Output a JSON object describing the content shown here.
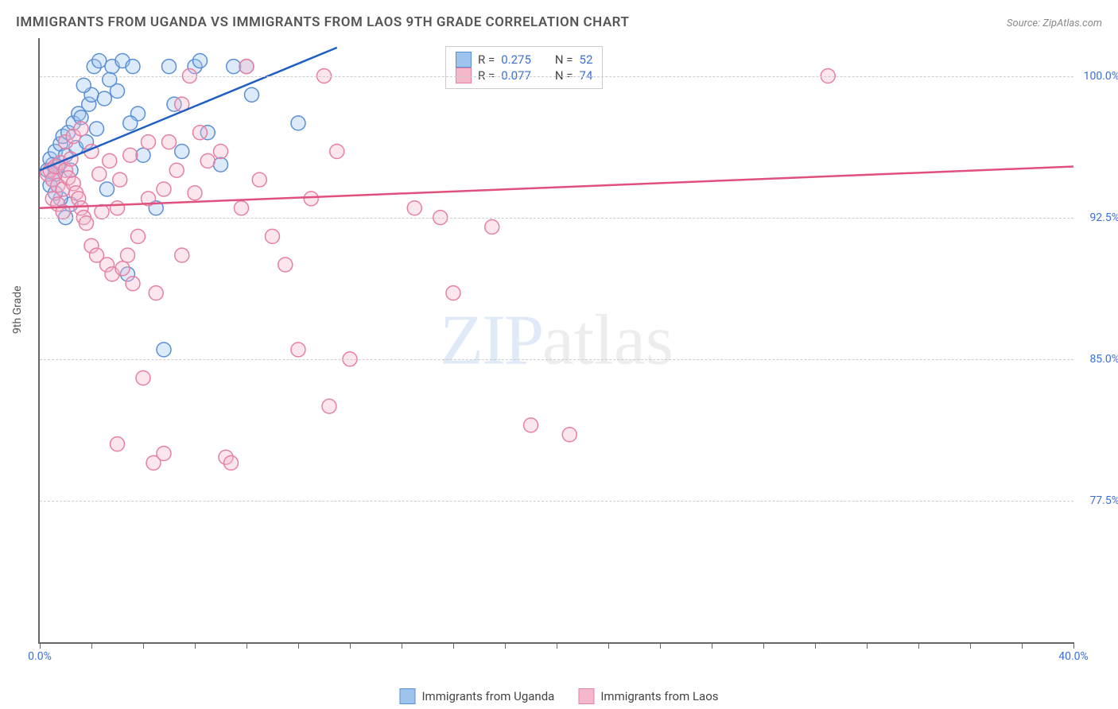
{
  "title": "IMMIGRANTS FROM UGANDA VS IMMIGRANTS FROM LAOS 9TH GRADE CORRELATION CHART",
  "source": "Source: ZipAtlas.com",
  "ylabel": "9th Grade",
  "watermark": {
    "part1": "ZIP",
    "part2": "atlas"
  },
  "chart": {
    "type": "scatter",
    "xlim": [
      0,
      40
    ],
    "ylim": [
      70,
      102
    ],
    "yticks": [
      {
        "v": 100.0,
        "label": "100.0%"
      },
      {
        "v": 92.5,
        "label": "92.5%"
      },
      {
        "v": 85.0,
        "label": "85.0%"
      },
      {
        "v": 77.5,
        "label": "77.5%"
      }
    ],
    "xticks_labeled": [
      {
        "v": 0,
        "label": "0.0%"
      },
      {
        "v": 40,
        "label": "40.0%"
      }
    ],
    "xticks_minor": [
      0,
      2,
      4,
      6,
      8,
      10,
      12,
      14,
      16,
      18,
      20,
      22,
      24,
      26,
      28,
      30,
      32,
      34,
      36,
      38,
      40
    ],
    "marker_radius": 9,
    "series": [
      {
        "name": "Immigrants from Uganda",
        "color_fill": "#9ec4ee",
        "color_stroke": "#5a8fd6",
        "R": "0.275",
        "N": "52",
        "trend": {
          "x1": 0,
          "y1": 95.0,
          "x2": 11.5,
          "y2": 101.5,
          "color": "#1f5fc4"
        },
        "points": [
          [
            0.3,
            95.0
          ],
          [
            0.5,
            95.3
          ],
          [
            0.4,
            95.6
          ],
          [
            0.6,
            96.0
          ],
          [
            0.7,
            95.2
          ],
          [
            0.8,
            96.4
          ],
          [
            0.5,
            94.5
          ],
          [
            0.6,
            94.8
          ],
          [
            0.9,
            96.8
          ],
          [
            1.0,
            95.8
          ],
          [
            1.1,
            97.0
          ],
          [
            1.2,
            95.0
          ],
          [
            1.3,
            97.5
          ],
          [
            1.4,
            96.2
          ],
          [
            1.5,
            98.0
          ],
          [
            1.6,
            97.8
          ],
          [
            1.8,
            96.5
          ],
          [
            1.9,
            98.5
          ],
          [
            2.0,
            99.0
          ],
          [
            2.1,
            100.5
          ],
          [
            2.3,
            100.8
          ],
          [
            2.5,
            98.8
          ],
          [
            2.6,
            94.0
          ],
          [
            2.8,
            100.5
          ],
          [
            3.0,
            99.2
          ],
          [
            3.2,
            100.8
          ],
          [
            3.4,
            89.5
          ],
          [
            3.6,
            100.5
          ],
          [
            3.8,
            98.0
          ],
          [
            4.0,
            95.8
          ],
          [
            4.5,
            93.0
          ],
          [
            4.8,
            85.5
          ],
          [
            5.0,
            100.5
          ],
          [
            5.2,
            98.5
          ],
          [
            5.5,
            96.0
          ],
          [
            6.0,
            100.5
          ],
          [
            6.2,
            100.8
          ],
          [
            6.5,
            97.0
          ],
          [
            7.0,
            95.3
          ],
          [
            7.5,
            100.5
          ],
          [
            8.0,
            100.5
          ],
          [
            8.2,
            99.0
          ],
          [
            10.0,
            97.5
          ],
          [
            1.0,
            92.5
          ],
          [
            1.2,
            93.2
          ],
          [
            0.8,
            93.5
          ],
          [
            0.4,
            94.2
          ],
          [
            0.6,
            93.8
          ],
          [
            2.2,
            97.2
          ],
          [
            2.7,
            99.8
          ],
          [
            3.5,
            97.5
          ],
          [
            1.7,
            99.5
          ]
        ]
      },
      {
        "name": "Immigrants from Laos",
        "color_fill": "#f4b8ca",
        "color_stroke": "#e77fa3",
        "R": "0.077",
        "N": "74",
        "trend": {
          "x1": 0,
          "y1": 93.0,
          "x2": 40,
          "y2": 95.2,
          "color": "#e0507c"
        },
        "points": [
          [
            0.3,
            94.8
          ],
          [
            0.4,
            95.0
          ],
          [
            0.5,
            94.5
          ],
          [
            0.6,
            95.2
          ],
          [
            0.7,
            94.2
          ],
          [
            0.8,
            95.4
          ],
          [
            0.9,
            94.0
          ],
          [
            1.0,
            95.0
          ],
          [
            1.1,
            94.6
          ],
          [
            1.2,
            95.6
          ],
          [
            1.3,
            94.3
          ],
          [
            1.4,
            93.8
          ],
          [
            1.5,
            93.5
          ],
          [
            1.6,
            93.0
          ],
          [
            1.7,
            92.5
          ],
          [
            1.8,
            92.2
          ],
          [
            2.0,
            91.0
          ],
          [
            2.2,
            90.5
          ],
          [
            2.4,
            92.8
          ],
          [
            2.6,
            90.0
          ],
          [
            2.8,
            89.5
          ],
          [
            3.0,
            93.0
          ],
          [
            3.2,
            89.8
          ],
          [
            3.4,
            90.5
          ],
          [
            3.6,
            89.0
          ],
          [
            3.8,
            91.5
          ],
          [
            4.0,
            84.0
          ],
          [
            4.2,
            93.5
          ],
          [
            4.4,
            79.5
          ],
          [
            4.5,
            88.5
          ],
          [
            5.0,
            96.5
          ],
          [
            5.3,
            95.0
          ],
          [
            5.5,
            98.5
          ],
          [
            5.8,
            100.0
          ],
          [
            6.0,
            93.8
          ],
          [
            6.2,
            97.0
          ],
          [
            6.5,
            95.5
          ],
          [
            7.0,
            96.0
          ],
          [
            7.2,
            79.8
          ],
          [
            7.4,
            79.5
          ],
          [
            7.8,
            93.0
          ],
          [
            8.0,
            100.5
          ],
          [
            8.5,
            94.5
          ],
          [
            9.0,
            91.5
          ],
          [
            9.5,
            90.0
          ],
          [
            10.0,
            85.5
          ],
          [
            10.5,
            93.5
          ],
          [
            11.0,
            100.0
          ],
          [
            11.2,
            82.5
          ],
          [
            11.5,
            96.0
          ],
          [
            12.0,
            85.0
          ],
          [
            4.8,
            80.0
          ],
          [
            3.0,
            80.5
          ],
          [
            14.5,
            93.0
          ],
          [
            15.5,
            92.5
          ],
          [
            16.0,
            88.5
          ],
          [
            17.5,
            92.0
          ],
          [
            19.0,
            81.5
          ],
          [
            20.5,
            81.0
          ],
          [
            30.5,
            100.0
          ],
          [
            1.0,
            96.5
          ],
          [
            1.3,
            96.8
          ],
          [
            1.6,
            97.2
          ],
          [
            2.0,
            96.0
          ],
          [
            2.3,
            94.8
          ],
          [
            2.7,
            95.5
          ],
          [
            3.1,
            94.5
          ],
          [
            3.5,
            95.8
          ],
          [
            4.2,
            96.5
          ],
          [
            4.8,
            94.0
          ],
          [
            5.5,
            90.5
          ],
          [
            0.5,
            93.5
          ],
          [
            0.7,
            93.2
          ],
          [
            0.9,
            92.8
          ]
        ]
      }
    ]
  },
  "legend_top": {
    "rows": [
      {
        "swatch_fill": "#9ec4ee",
        "swatch_stroke": "#5a8fd6",
        "r_label": "R =",
        "r_val": "0.275",
        "n_label": "N =",
        "n_val": "52"
      },
      {
        "swatch_fill": "#f4b8ca",
        "swatch_stroke": "#e77fa3",
        "r_label": "R =",
        "r_val": "0.077",
        "n_label": "N =",
        "n_val": "74"
      }
    ]
  },
  "legend_bottom": [
    {
      "swatch_fill": "#9ec4ee",
      "swatch_stroke": "#5a8fd6",
      "label": "Immigrants from Uganda"
    },
    {
      "swatch_fill": "#f4b8ca",
      "swatch_stroke": "#e77fa3",
      "label": "Immigrants from Laos"
    }
  ],
  "colors": {
    "axis": "#666666",
    "grid": "#cccccc",
    "tick_text": "#3b6fd6",
    "title_text": "#555555"
  }
}
